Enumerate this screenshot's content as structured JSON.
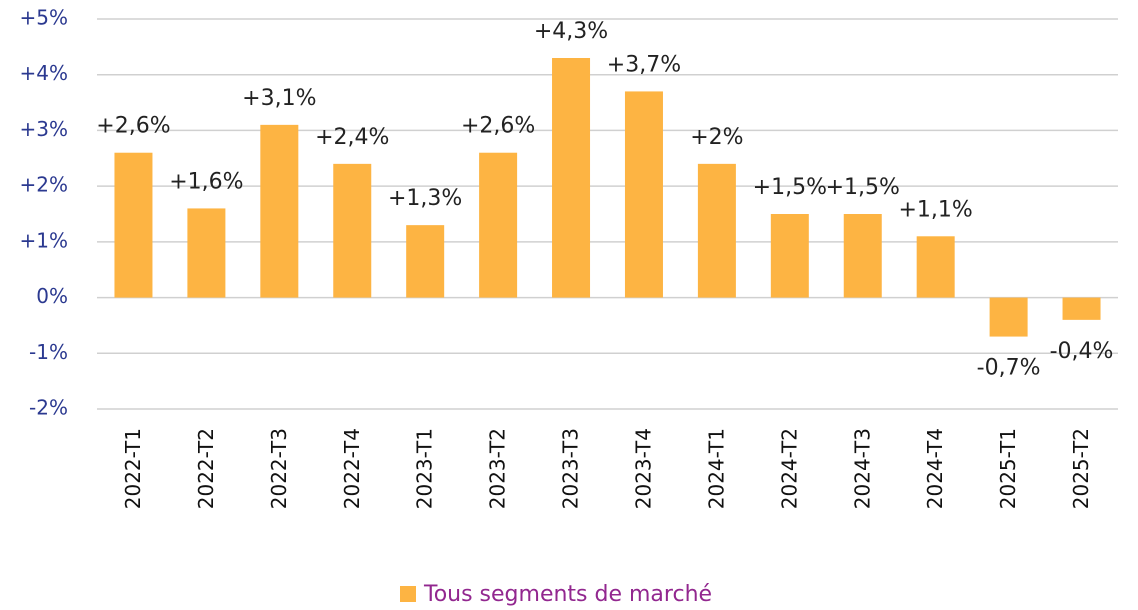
{
  "chart_data": {
    "type": "bar",
    "categories": [
      "2022-T1",
      "2022-T2",
      "2022-T3",
      "2022-T4",
      "2023-T1",
      "2023-T2",
      "2023-T3",
      "2023-T4",
      "2024-T1",
      "2024-T2",
      "2024-T3",
      "2024-T4",
      "2025-T1",
      "2025-T2"
    ],
    "series": [
      {
        "name": "Tous segments de marché",
        "color": "#fdb443",
        "values": [
          2.6,
          1.6,
          3.1,
          2.4,
          1.3,
          2.6,
          4.3,
          3.7,
          2.4,
          1.5,
          1.5,
          1.1,
          -0.7,
          -0.4
        ],
        "value_labels": [
          "+2,6%",
          "+1,6%",
          "+3,1%",
          "+2,4%",
          "+1,3%",
          "+2,6%",
          "+4,3%",
          "+3,7%",
          "+2%",
          "+1,5%",
          "+1,5%",
          "+1,1%",
          "-0,7%",
          "-0,4%"
        ]
      }
    ],
    "ylim": [
      -2,
      5
    ],
    "yticks": [
      {
        "value": -2,
        "label": "-2%"
      },
      {
        "value": -1,
        "label": "-1%"
      },
      {
        "value": 0,
        "label": "0%"
      },
      {
        "value": 1,
        "label": "+1%"
      },
      {
        "value": 2,
        "label": "+2%"
      },
      {
        "value": 3,
        "label": "+3%"
      },
      {
        "value": 4,
        "label": "+4%"
      },
      {
        "value": 5,
        "label": "+5%"
      }
    ],
    "grid": true,
    "legend": "bottom"
  }
}
